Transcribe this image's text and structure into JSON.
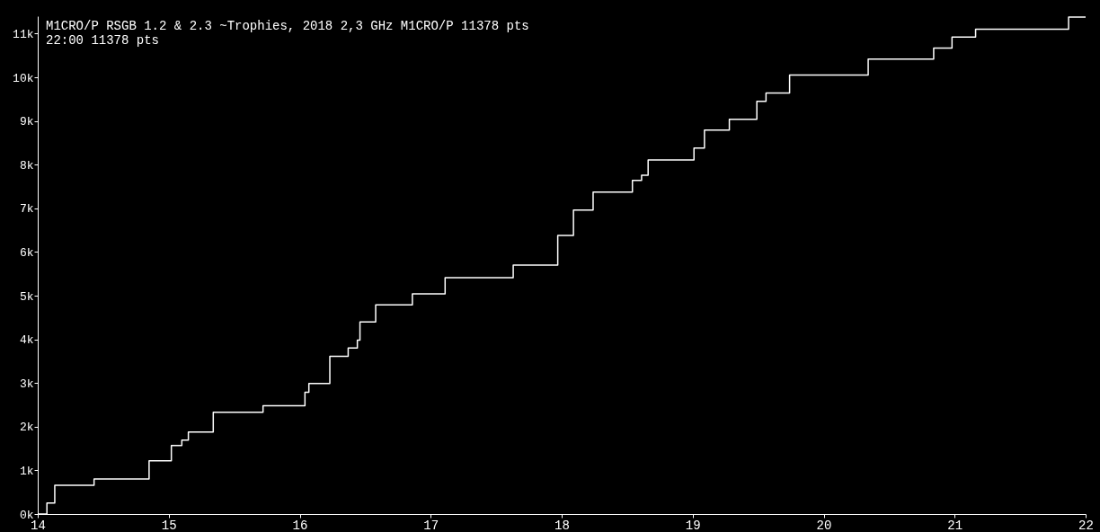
{
  "chart_data": {
    "type": "step",
    "title": "M1CRO/P      RSGB 1.2 & 2.3 ~Trophies, 2018 2,3 GHz  M1CRO/P 11378 pts",
    "subtitle": "22:00  11378 pts",
    "x": [
      14,
      14.07,
      14.13,
      14.43,
      14.85,
      15.02,
      15.1,
      15.15,
      15.34,
      15.72,
      16.04,
      16.07,
      16.23,
      16.37,
      16.44,
      16.46,
      16.58,
      16.86,
      17.11,
      17.63,
      17.97,
      18.09,
      18.24,
      18.54,
      18.61,
      18.66,
      19.01,
      19.09,
      19.28,
      19.49,
      19.56,
      19.74,
      20.34,
      20.84,
      20.98,
      21.16,
      21.87,
      22
    ],
    "series": [
      {
        "color": "#ffffff",
        "values": [
          0,
          250,
          660,
          800,
          1220,
          1570,
          1690,
          1880,
          2330,
          2480,
          2790,
          2990,
          3610,
          3800,
          3980,
          4400,
          4790,
          5040,
          5410,
          5700,
          6380,
          6960,
          7370,
          7640,
          7760,
          8110,
          8380,
          8790,
          9040,
          9450,
          9640,
          10050,
          10420,
          10670,
          10920,
          11100,
          11378,
          11378
        ]
      }
    ],
    "xlim": [
      14,
      22
    ],
    "xticks": [
      14,
      15,
      16,
      17,
      18,
      19,
      20,
      21,
      22
    ],
    "ylim": [
      0,
      11400
    ],
    "yticks": [
      {
        "value": 0,
        "label": "0k"
      },
      {
        "value": 1000,
        "label": "1k"
      },
      {
        "value": 2000,
        "label": "2k"
      },
      {
        "value": 3000,
        "label": "3k"
      },
      {
        "value": 4000,
        "label": "4k"
      },
      {
        "value": 5000,
        "label": "5k"
      },
      {
        "value": 6000,
        "label": "6k"
      },
      {
        "value": 7000,
        "label": "7k"
      },
      {
        "value": 8000,
        "label": "8k"
      },
      {
        "value": 9000,
        "label": "9k"
      },
      {
        "value": 10000,
        "label": "10k"
      },
      {
        "value": 11000,
        "label": "11k"
      }
    ],
    "grid": false,
    "marker": "none",
    "line_style": "solid"
  }
}
